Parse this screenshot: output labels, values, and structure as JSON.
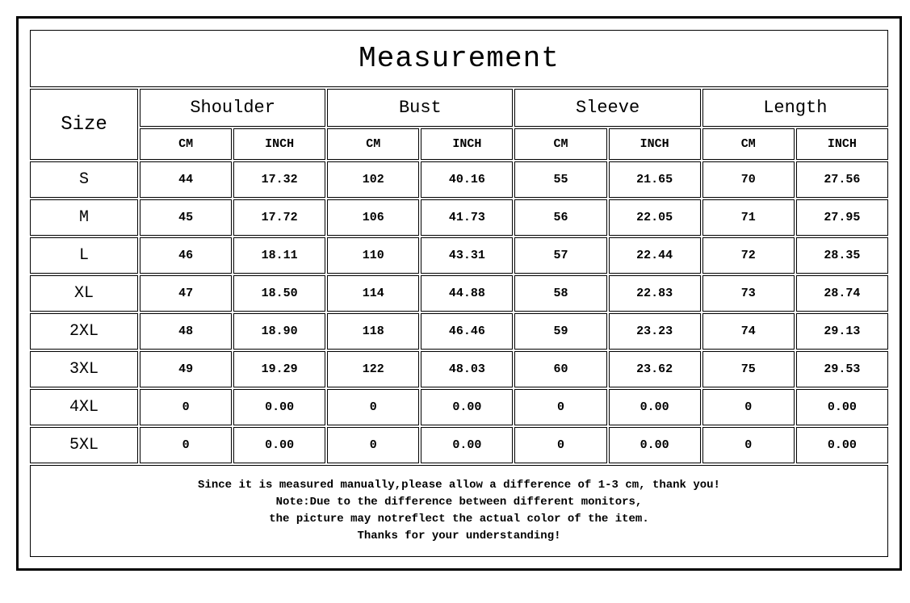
{
  "title": "Measurement",
  "size_label": "Size",
  "groups": [
    "Shoulder",
    "Bust",
    "Sleeve",
    "Length"
  ],
  "units": [
    "CM",
    "INCH"
  ],
  "rows": [
    {
      "size": "S",
      "shoulder_cm": "44",
      "shoulder_in": "17.32",
      "bust_cm": "102",
      "bust_in": "40.16",
      "sleeve_cm": "55",
      "sleeve_in": "21.65",
      "length_cm": "70",
      "length_in": "27.56"
    },
    {
      "size": "M",
      "shoulder_cm": "45",
      "shoulder_in": "17.72",
      "bust_cm": "106",
      "bust_in": "41.73",
      "sleeve_cm": "56",
      "sleeve_in": "22.05",
      "length_cm": "71",
      "length_in": "27.95"
    },
    {
      "size": "L",
      "shoulder_cm": "46",
      "shoulder_in": "18.11",
      "bust_cm": "110",
      "bust_in": "43.31",
      "sleeve_cm": "57",
      "sleeve_in": "22.44",
      "length_cm": "72",
      "length_in": "28.35"
    },
    {
      "size": "XL",
      "shoulder_cm": "47",
      "shoulder_in": "18.50",
      "bust_cm": "114",
      "bust_in": "44.88",
      "sleeve_cm": "58",
      "sleeve_in": "22.83",
      "length_cm": "73",
      "length_in": "28.74"
    },
    {
      "size": "2XL",
      "shoulder_cm": "48",
      "shoulder_in": "18.90",
      "bust_cm": "118",
      "bust_in": "46.46",
      "sleeve_cm": "59",
      "sleeve_in": "23.23",
      "length_cm": "74",
      "length_in": "29.13"
    },
    {
      "size": "3XL",
      "shoulder_cm": "49",
      "shoulder_in": "19.29",
      "bust_cm": "122",
      "bust_in": "48.03",
      "sleeve_cm": "60",
      "sleeve_in": "23.62",
      "length_cm": "75",
      "length_in": "29.53"
    },
    {
      "size": "4XL",
      "shoulder_cm": "0",
      "shoulder_in": "0.00",
      "bust_cm": "0",
      "bust_in": "0.00",
      "sleeve_cm": "0",
      "sleeve_in": "0.00",
      "length_cm": "0",
      "length_in": "0.00"
    },
    {
      "size": "5XL",
      "shoulder_cm": "0",
      "shoulder_in": "0.00",
      "bust_cm": "0",
      "bust_in": "0.00",
      "sleeve_cm": "0",
      "sleeve_in": "0.00",
      "length_cm": "0",
      "length_in": "0.00"
    }
  ],
  "notes": [
    "Since it is measured manually,please allow a difference of 1-3 cm, thank you!",
    "Note:Due to the difference between different monitors,",
    "the picture may notreflect the actual color of the item.",
    "Thanks for your understanding!"
  ],
  "style": {
    "border_color": "#000000",
    "background_color": "#ffffff",
    "font_family": "Courier New",
    "title_fontsize": 36,
    "group_fontsize": 22,
    "size_header_fontsize": 24,
    "unit_fontsize": 15,
    "size_cell_fontsize": 20,
    "data_fontsize": 15,
    "note_fontsize": 14,
    "col_widths_pct": {
      "size": 12.8,
      "data": 10.9
    }
  }
}
